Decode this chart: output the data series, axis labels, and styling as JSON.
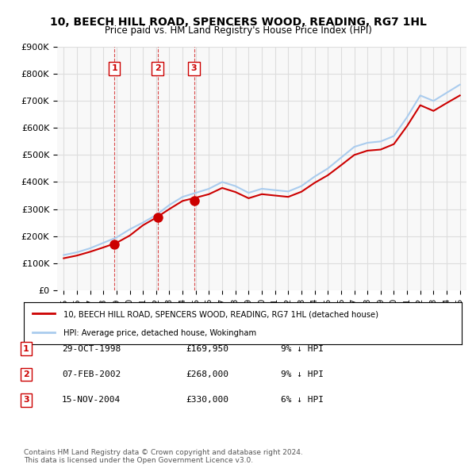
{
  "title": "10, BEECH HILL ROAD, SPENCERS WOOD, READING, RG7 1HL",
  "subtitle": "Price paid vs. HM Land Registry's House Price Index (HPI)",
  "property_label": "10, BEECH HILL ROAD, SPENCERS WOOD, READING, RG7 1HL (detached house)",
  "hpi_label": "HPI: Average price, detached house, Wokingham",
  "footer1": "Contains HM Land Registry data © Crown copyright and database right 2024.",
  "footer2": "This data is licensed under the Open Government Licence v3.0.",
  "transactions": [
    {
      "num": 1,
      "date": "29-OCT-1998",
      "price": "£169,950",
      "note": "9% ↓ HPI",
      "year": 1998.83
    },
    {
      "num": 2,
      "date": "07-FEB-2002",
      "price": "£268,000",
      "note": "9% ↓ HPI",
      "year": 2002.1
    },
    {
      "num": 3,
      "date": "15-NOV-2004",
      "price": "£330,000",
      "note": "6% ↓ HPI",
      "year": 2004.87
    }
  ],
  "transaction_prices": [
    169950,
    268000,
    330000
  ],
  "ylim": [
    0,
    900000
  ],
  "xlim": [
    1994.5,
    2025.5
  ],
  "yticks": [
    0,
    100000,
    200000,
    300000,
    400000,
    500000,
    600000,
    700000,
    800000,
    900000
  ],
  "ytick_labels": [
    "£0",
    "£100K",
    "£200K",
    "£300K",
    "£400K",
    "£500K",
    "£600K",
    "£700K",
    "£800K",
    "£900K"
  ],
  "red_color": "#cc0000",
  "blue_color": "#aaccee",
  "vline_color": "#cc0000",
  "marker_box_color": "#cc0000",
  "grid_color": "#dddddd",
  "bg_color": "#ffffff",
  "plot_bg_color": "#f8f8f8"
}
